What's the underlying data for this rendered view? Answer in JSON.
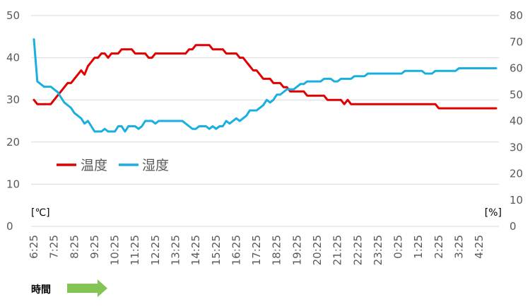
{
  "chart_data": {
    "type": "line",
    "title": "",
    "x_title": "時間",
    "y_left_unit": "[℃]",
    "y_right_unit": "[%]",
    "y_left_range": [
      0,
      50
    ],
    "y_left_ticks": [
      0,
      10,
      20,
      30,
      40,
      50
    ],
    "y_right_range": [
      0,
      80
    ],
    "y_right_ticks": [
      0,
      10,
      20,
      30,
      40,
      50,
      60,
      70,
      80
    ],
    "grid": "horizontal",
    "legend_position": "left-middle",
    "x_tick_labels": [
      "6:25",
      "7:25",
      "8:25",
      "9:25",
      "10:25",
      "11:25",
      "12:25",
      "13:25",
      "14:25",
      "15:25",
      "16:25",
      "17:25",
      "18:25",
      "19:25",
      "20:25",
      "21:25",
      "22:25",
      "23:25",
      "0:25",
      "1:25",
      "2:25",
      "3:25",
      "4:25"
    ],
    "x_points_per_tick": 6,
    "series": [
      {
        "name": "温度",
        "axis": "left",
        "color": "#e00000",
        "values": [
          30,
          29,
          29,
          29,
          29,
          29,
          30,
          31,
          32,
          33,
          34,
          34,
          35,
          36,
          37,
          36,
          38,
          39,
          40,
          40,
          41,
          41,
          40,
          41,
          41,
          41,
          42,
          42,
          42,
          42,
          41,
          41,
          41,
          41,
          40,
          40,
          41,
          41,
          41,
          41,
          41,
          41,
          41,
          41,
          41,
          41,
          42,
          42,
          43,
          43,
          43,
          43,
          43,
          42,
          42,
          42,
          42,
          41,
          41,
          41,
          41,
          40,
          40,
          39,
          38,
          37,
          37,
          36,
          35,
          35,
          35,
          34,
          34,
          34,
          33,
          33,
          32,
          32,
          32,
          32,
          32,
          31,
          31,
          31,
          31,
          31,
          31,
          30,
          30,
          30,
          30,
          30,
          29,
          30,
          29,
          29,
          29,
          29,
          29,
          29,
          29,
          29,
          29,
          29,
          29,
          29,
          29,
          29,
          29,
          29,
          29,
          29,
          29,
          29,
          29,
          29,
          29,
          29,
          29,
          29,
          28,
          28,
          28,
          28,
          28,
          28,
          28,
          28,
          28,
          28,
          28,
          28,
          28,
          28,
          28,
          28,
          28,
          28
        ]
      },
      {
        "name": "湿度",
        "axis": "right",
        "color": "#1aafe0",
        "values": [
          71,
          55,
          54,
          53,
          53,
          53,
          52,
          51,
          49,
          47,
          46,
          45,
          43,
          42,
          41,
          39,
          40,
          38,
          36,
          36,
          36,
          37,
          36,
          36,
          36,
          38,
          38,
          36,
          38,
          38,
          38,
          37,
          38,
          40,
          40,
          40,
          39,
          40,
          40,
          40,
          40,
          40,
          40,
          40,
          40,
          39,
          38,
          37,
          37,
          38,
          38,
          38,
          37,
          38,
          37,
          38,
          38,
          40,
          39,
          40,
          41,
          40,
          41,
          42,
          44,
          44,
          44,
          45,
          46,
          48,
          47,
          48,
          50,
          50,
          51,
          52,
          52,
          52,
          53,
          54,
          54,
          55,
          55,
          55,
          55,
          55,
          56,
          56,
          56,
          55,
          55,
          56,
          56,
          56,
          56,
          57,
          57,
          57,
          57,
          58,
          58,
          58,
          58,
          58,
          58,
          58,
          58,
          58,
          58,
          58,
          59,
          59,
          59,
          59,
          59,
          59,
          58,
          58,
          58,
          59,
          59,
          59,
          59,
          59,
          59,
          59,
          60,
          60,
          60,
          60,
          60,
          60,
          60,
          60,
          60,
          60,
          60,
          60
        ]
      }
    ]
  }
}
